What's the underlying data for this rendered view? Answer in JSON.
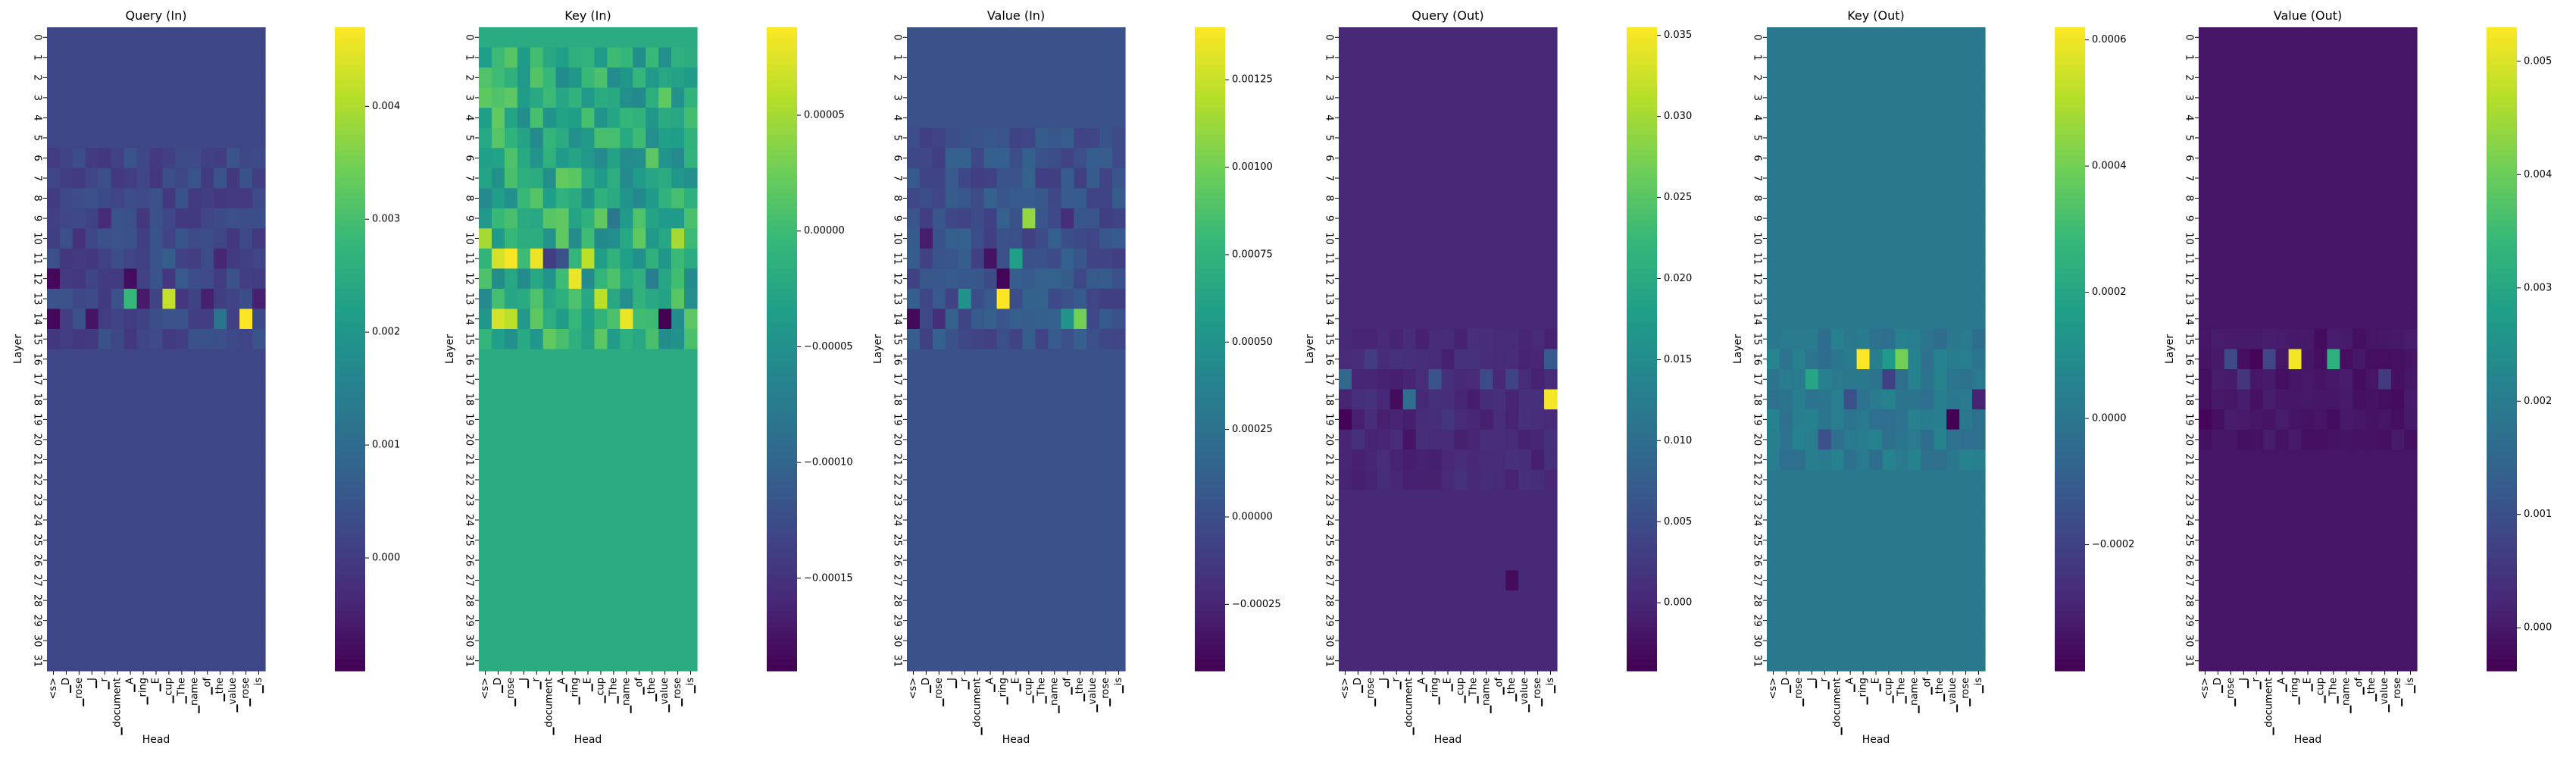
{
  "figure": {
    "colormap": "viridis",
    "colors": [
      "#440154",
      "#482878",
      "#3e4989",
      "#31688e",
      "#26828e",
      "#1f9e89",
      "#35b779",
      "#6ece58",
      "#b5de2b",
      "#fde725"
    ]
  },
  "chart_data": [
    {
      "type": "heatmap",
      "title": "Query (In)",
      "xlabel": "Head",
      "ylabel": "Layer",
      "x_tick_labels": [
        "<s>",
        "▁D",
        "▁rose",
        "▁J",
        "▁r",
        "▁document",
        "▁A",
        "▁ring",
        "▁E",
        "▁cup",
        "▁The",
        "▁name",
        "▁of",
        "▁the",
        "▁value",
        "▁rose",
        "▁is"
      ],
      "y_tick_labels": [
        "0",
        "1",
        "2",
        "3",
        "4",
        "5",
        "6",
        "7",
        "8",
        "9",
        "10",
        "11",
        "12",
        "13",
        "14",
        "15",
        "16",
        "17",
        "18",
        "19",
        "20",
        "21",
        "22",
        "23",
        "24",
        "25",
        "26",
        "27",
        "28",
        "29",
        "30",
        "31"
      ],
      "colorbar": {
        "vmin": -0.001,
        "vmax": 0.0047,
        "ticks": [
          0.0,
          0.001,
          0.002,
          0.003,
          0.004
        ],
        "tick_labels": [
          "0.000",
          "0.001",
          "0.002",
          "0.003",
          "0.004"
        ]
      },
      "baseline": 0.0002,
      "hotspots": [
        {
          "layer": 14,
          "token": 15,
          "value": 0.0047
        },
        {
          "layer": 13,
          "token": 9,
          "value": 0.0042
        },
        {
          "layer": 13,
          "token": 6,
          "value": 0.0028
        },
        {
          "layer": 12,
          "token": 0,
          "value": -0.0009
        },
        {
          "layer": 14,
          "token": 0,
          "value": -0.0009
        },
        {
          "layer": 12,
          "token": 6,
          "value": -0.0008
        },
        {
          "layer": 13,
          "token": 7,
          "value": -0.0006
        },
        {
          "layer": 14,
          "token": 3,
          "value": -0.0007
        },
        {
          "layer": 13,
          "token": 12,
          "value": -0.0005
        },
        {
          "layer": 11,
          "token": 13,
          "value": -0.0004
        },
        {
          "layer": 11,
          "token": 9,
          "value": 0.0007
        },
        {
          "layer": 13,
          "token": 16,
          "value": -0.0005
        },
        {
          "layer": 12,
          "token": 10,
          "value": 0.0006
        },
        {
          "layer": 14,
          "token": 13,
          "value": 0.0012
        },
        {
          "layer": 9,
          "token": 4,
          "value": -0.0003
        },
        {
          "layer": 10,
          "token": 2,
          "value": -0.0002
        }
      ],
      "noise": {
        "layer_min": 6,
        "layer_max": 15,
        "amplitude": 0.0003
      }
    },
    {
      "type": "heatmap",
      "title": "Key (In)",
      "xlabel": "Head",
      "ylabel": "Layer",
      "x_tick_labels": [
        "<s>",
        "▁D",
        "▁rose",
        "▁J",
        "▁r",
        "▁document",
        "▁A",
        "▁ring",
        "▁E",
        "▁cup",
        "▁The",
        "▁name",
        "▁of",
        "▁the",
        "▁value",
        "▁rose",
        "▁is"
      ],
      "y_tick_labels": [
        "0",
        "1",
        "2",
        "3",
        "4",
        "5",
        "6",
        "7",
        "8",
        "9",
        "10",
        "11",
        "12",
        "13",
        "14",
        "15",
        "16",
        "17",
        "18",
        "19",
        "20",
        "21",
        "22",
        "23",
        "24",
        "25",
        "26",
        "27",
        "28",
        "29",
        "30",
        "31"
      ],
      "colorbar": {
        "vmin": -0.00019,
        "vmax": 8.8e-05,
        "ticks": [
          -0.00015,
          -0.0001,
          -5e-05,
          0.0,
          5e-05
        ],
        "tick_labels": [
          "−0.00015",
          "−0.00010",
          "−0.00005",
          "0.00000",
          "0.00005"
        ]
      },
      "baseline": -2e-05,
      "hotspots": [
        {
          "layer": 11,
          "token": 2,
          "value": 8.5e-05
        },
        {
          "layer": 11,
          "token": 4,
          "value": 8e-05
        },
        {
          "layer": 11,
          "token": 1,
          "value": 7e-05
        },
        {
          "layer": 11,
          "token": 8,
          "value": 6e-05
        },
        {
          "layer": 11,
          "token": 5,
          "value": -0.00014
        },
        {
          "layer": 11,
          "token": 6,
          "value": -0.00012
        },
        {
          "layer": 12,
          "token": 7,
          "value": 8e-05
        },
        {
          "layer": 14,
          "token": 11,
          "value": 8e-05
        },
        {
          "layer": 14,
          "token": 14,
          "value": -0.00019
        },
        {
          "layer": 14,
          "token": 1,
          "value": 7e-05
        },
        {
          "layer": 14,
          "token": 2,
          "value": 6e-05
        },
        {
          "layer": 10,
          "token": 0,
          "value": 5e-05
        },
        {
          "layer": 9,
          "token": 10,
          "value": -8e-05
        },
        {
          "layer": 13,
          "token": 9,
          "value": 6e-05
        },
        {
          "layer": 12,
          "token": 13,
          "value": -7e-05
        },
        {
          "layer": 10,
          "token": 15,
          "value": 5e-05
        }
      ],
      "noise": {
        "layer_min": 1,
        "layer_max": 15,
        "amplitude": 4e-05
      }
    },
    {
      "type": "heatmap",
      "title": "Value (In)",
      "xlabel": "Head",
      "ylabel": "Layer",
      "x_tick_labels": [
        "<s>",
        "▁D",
        "▁rose",
        "▁J",
        "▁r",
        "▁document",
        "▁A",
        "▁ring",
        "▁E",
        "▁cup",
        "▁The",
        "▁name",
        "▁of",
        "▁the",
        "▁value",
        "▁rose",
        "▁is"
      ],
      "y_tick_labels": [
        "0",
        "1",
        "2",
        "3",
        "4",
        "5",
        "6",
        "7",
        "8",
        "9",
        "10",
        "11",
        "12",
        "13",
        "14",
        "15",
        "16",
        "17",
        "18",
        "19",
        "20",
        "21",
        "22",
        "23",
        "24",
        "25",
        "26",
        "27",
        "28",
        "29",
        "30",
        "31"
      ],
      "colorbar": {
        "vmin": -0.00044,
        "vmax": 0.0014,
        "ticks": [
          -0.00025,
          0.0,
          0.00025,
          0.0005,
          0.00075,
          0.001,
          0.00125
        ],
        "tick_labels": [
          "−0.00025",
          "0.00000",
          "0.00025",
          "0.00050",
          "0.00075",
          "0.00100",
          "0.00125"
        ]
      },
      "baseline": 2e-05,
      "hotspots": [
        {
          "layer": 13,
          "token": 7,
          "value": 0.0014
        },
        {
          "layer": 9,
          "token": 9,
          "value": 0.0011
        },
        {
          "layer": 14,
          "token": 13,
          "value": 0.001
        },
        {
          "layer": 12,
          "token": 7,
          "value": -0.00042
        },
        {
          "layer": 11,
          "token": 6,
          "value": -0.00035
        },
        {
          "layer": 14,
          "token": 0,
          "value": -0.0004
        },
        {
          "layer": 11,
          "token": 8,
          "value": 0.0006
        },
        {
          "layer": 13,
          "token": 4,
          "value": 0.0005
        },
        {
          "layer": 10,
          "token": 1,
          "value": -0.0003
        },
        {
          "layer": 14,
          "token": 2,
          "value": -0.0002
        },
        {
          "layer": 14,
          "token": 12,
          "value": 0.0005
        },
        {
          "layer": 9,
          "token": 12,
          "value": -0.0002
        }
      ],
      "noise": {
        "layer_min": 5,
        "layer_max": 15,
        "amplitude": 0.00012
      }
    },
    {
      "type": "heatmap",
      "title": "Query (Out)",
      "xlabel": "Head",
      "ylabel": "Layer",
      "x_tick_labels": [
        "<s>",
        "▁D",
        "▁rose",
        "▁J",
        "▁r",
        "▁document",
        "▁A",
        "▁ring",
        "▁E",
        "▁cup",
        "▁The",
        "▁name",
        "▁of",
        "▁the",
        "▁value",
        "▁rose",
        "▁is"
      ],
      "y_tick_labels": [
        "0",
        "1",
        "2",
        "3",
        "4",
        "5",
        "6",
        "7",
        "8",
        "9",
        "10",
        "11",
        "12",
        "13",
        "14",
        "15",
        "16",
        "17",
        "18",
        "19",
        "20",
        "21",
        "22",
        "23",
        "24",
        "25",
        "26",
        "27",
        "28",
        "29",
        "30",
        "31"
      ],
      "colorbar": {
        "vmin": -0.0042,
        "vmax": 0.0355,
        "ticks": [
          0.0,
          0.005,
          0.01,
          0.015,
          0.02,
          0.025,
          0.03,
          0.035
        ],
        "tick_labels": [
          "0.000",
          "0.005",
          "0.010",
          "0.015",
          "0.020",
          "0.025",
          "0.030",
          "0.035"
        ]
      },
      "baseline": 0.0003,
      "hotspots": [
        {
          "layer": 18,
          "token": 16,
          "value": 0.035
        },
        {
          "layer": 19,
          "token": 0,
          "value": -0.004
        },
        {
          "layer": 18,
          "token": 5,
          "value": 0.01
        },
        {
          "layer": 17,
          "token": 0,
          "value": 0.009
        },
        {
          "layer": 17,
          "token": 7,
          "value": 0.006
        },
        {
          "layer": 16,
          "token": 16,
          "value": 0.007
        },
        {
          "layer": 18,
          "token": 4,
          "value": -0.003
        },
        {
          "layer": 17,
          "token": 11,
          "value": 0.005
        },
        {
          "layer": 16,
          "token": 2,
          "value": 0.003
        },
        {
          "layer": 20,
          "token": 5,
          "value": -0.002
        },
        {
          "layer": 19,
          "token": 8,
          "value": 0.002
        },
        {
          "layer": 27,
          "token": 13,
          "value": -0.003
        },
        {
          "layer": 17,
          "token": 13,
          "value": 0.004
        }
      ],
      "noise": {
        "layer_min": 15,
        "layer_max": 22,
        "amplitude": 0.0012
      }
    },
    {
      "type": "heatmap",
      "title": "Key (Out)",
      "xlabel": "Head",
      "ylabel": "Layer",
      "x_tick_labels": [
        "<s>",
        "▁D",
        "▁rose",
        "▁J",
        "▁r",
        "▁document",
        "▁A",
        "▁ring",
        "▁E",
        "▁cup",
        "▁The",
        "▁name",
        "▁of",
        "▁the",
        "▁value",
        "▁rose",
        "▁is"
      ],
      "y_tick_labels": [
        "0",
        "1",
        "2",
        "3",
        "4",
        "5",
        "6",
        "7",
        "8",
        "9",
        "10",
        "11",
        "12",
        "13",
        "14",
        "15",
        "16",
        "17",
        "18",
        "19",
        "20",
        "21",
        "22",
        "23",
        "24",
        "25",
        "26",
        "27",
        "28",
        "29",
        "30",
        "31"
      ],
      "colorbar": {
        "vmin": -0.0004,
        "vmax": 0.00062,
        "ticks": [
          -0.0002,
          0.0,
          0.0002,
          0.0004,
          0.0006
        ],
        "tick_labels": [
          "−0.0002",
          "0.0000",
          "0.0002",
          "0.0004",
          "0.0006"
        ]
      },
      "baseline": 1e-05,
      "hotspots": [
        {
          "layer": 16,
          "token": 7,
          "value": 0.00062
        },
        {
          "layer": 19,
          "token": 14,
          "value": -0.0004
        },
        {
          "layer": 16,
          "token": 10,
          "value": 0.0004
        },
        {
          "layer": 18,
          "token": 16,
          "value": -0.0003
        },
        {
          "layer": 18,
          "token": 6,
          "value": -0.00015
        },
        {
          "layer": 17,
          "token": 9,
          "value": -0.0002
        },
        {
          "layer": 17,
          "token": 3,
          "value": 0.0002
        },
        {
          "layer": 20,
          "token": 4,
          "value": -0.00015
        },
        {
          "layer": 16,
          "token": 9,
          "value": 0.00015
        }
      ],
      "noise": {
        "layer_min": 15,
        "layer_max": 21,
        "amplitude": 5e-05
      }
    },
    {
      "type": "heatmap",
      "title": "Value (Out)",
      "xlabel": "Head",
      "ylabel": "Layer",
      "x_tick_labels": [
        "<s>",
        "▁D",
        "▁rose",
        "▁J",
        "▁r",
        "▁document",
        "▁A",
        "▁ring",
        "▁E",
        "▁cup",
        "▁The",
        "▁name",
        "▁of",
        "▁the",
        "▁value",
        "▁rose",
        "▁is"
      ],
      "y_tick_labels": [
        "0",
        "1",
        "2",
        "3",
        "4",
        "5",
        "6",
        "7",
        "8",
        "9",
        "10",
        "11",
        "12",
        "13",
        "14",
        "15",
        "16",
        "17",
        "18",
        "19",
        "20",
        "21",
        "22",
        "23",
        "24",
        "25",
        "26",
        "27",
        "28",
        "29",
        "30",
        "31"
      ],
      "colorbar": {
        "vmin": -0.00038,
        "vmax": 0.0053,
        "ticks": [
          0.0,
          0.001,
          0.002,
          0.003,
          0.004,
          0.005
        ],
        "tick_labels": [
          "0.000",
          "0.001",
          "0.002",
          "0.003",
          "0.004",
          "0.005"
        ]
      },
      "baseline": -5e-05,
      "hotspots": [
        {
          "layer": 16,
          "token": 7,
          "value": 0.0052
        },
        {
          "layer": 16,
          "token": 10,
          "value": 0.0032
        },
        {
          "layer": 16,
          "token": 2,
          "value": 0.0009
        },
        {
          "layer": 16,
          "token": 5,
          "value": 0.0008
        },
        {
          "layer": 16,
          "token": 4,
          "value": -0.0003
        },
        {
          "layer": 19,
          "token": 0,
          "value": -0.0003
        },
        {
          "layer": 17,
          "token": 14,
          "value": 0.0006
        },
        {
          "layer": 18,
          "token": 15,
          "value": -0.0002
        },
        {
          "layer": 17,
          "token": 3,
          "value": 0.0005
        }
      ],
      "noise": {
        "layer_min": 15,
        "layer_max": 20,
        "amplitude": 0.00015
      }
    }
  ]
}
